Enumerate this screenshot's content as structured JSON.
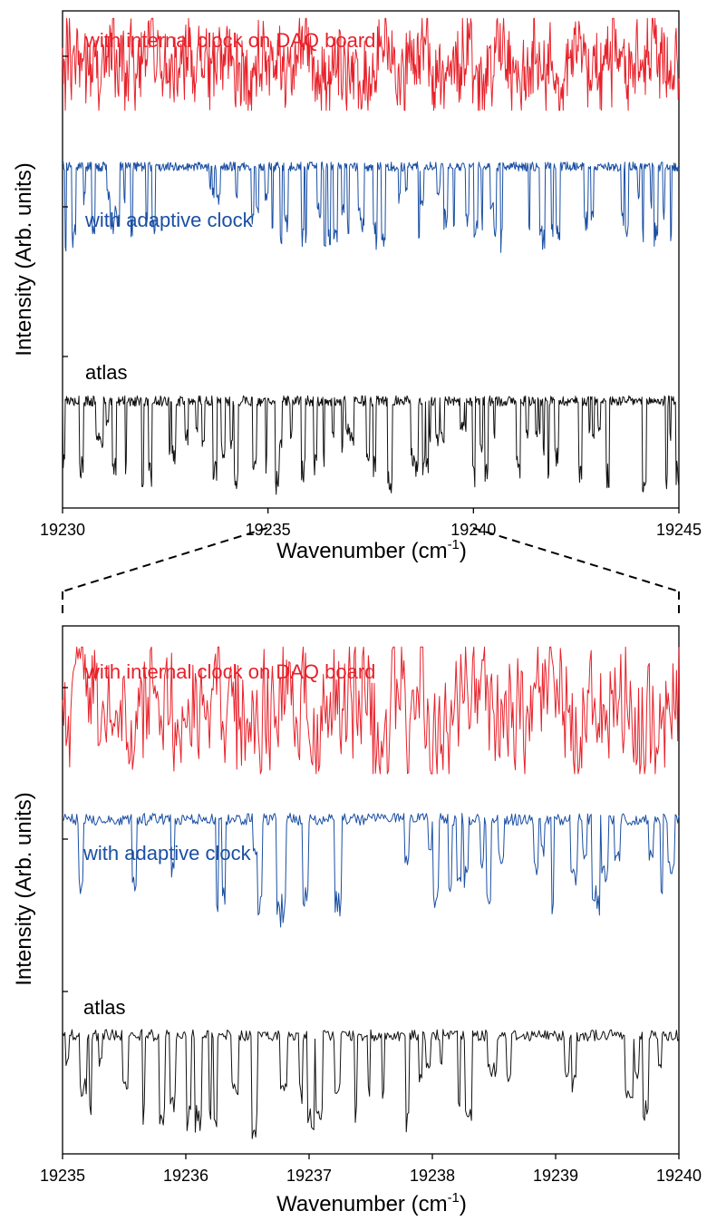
{
  "colors": {
    "internal": "#e8212a",
    "adaptive": "#1a4fa3",
    "atlas": "#111111",
    "axis": "#000000"
  },
  "chart_data": [
    {
      "type": "line",
      "xlabel": "Wavenumber (cm",
      "xlabel_sup": "-1",
      "xlabel_end": ")",
      "ylabel": "Intensity (Arb. units)",
      "xlim": [
        19230,
        19245
      ],
      "xticks": [
        "19230",
        "19235",
        "19240",
        "19245"
      ],
      "y_scale": "arbitrary, three vertically offset traces",
      "series": [
        {
          "name": "with internal clock on DAQ board",
          "color": "#e8212a",
          "range": [
            0.8,
            0.985
          ],
          "style": "noisy"
        },
        {
          "name": "with adaptive clock",
          "color": "#1a4fa3",
          "range": [
            0.51,
            0.7
          ],
          "style": "absorption"
        },
        {
          "name": "atlas",
          "color": "#111111",
          "range": [
            0.02,
            0.23
          ],
          "style": "absorption"
        }
      ]
    },
    {
      "type": "line",
      "xlabel": "Wavenumber (cm",
      "xlabel_sup": "-1",
      "xlabel_end": ")",
      "ylabel": "Intensity (Arb. units)",
      "xlim": [
        19235,
        19240
      ],
      "xticks": [
        "19235",
        "19236",
        "19237",
        "19238",
        "19239",
        "19240"
      ],
      "y_scale": "arbitrary, three vertically offset traces",
      "zoom_of_top_panel": [
        19235,
        19240
      ],
      "series": [
        {
          "name": "with internal clock on DAQ board",
          "color": "#e8212a",
          "range": [
            0.72,
            0.96
          ],
          "style": "noisy"
        },
        {
          "name": "with adaptive clock",
          "color": "#1a4fa3",
          "range": [
            0.42,
            0.65
          ],
          "style": "absorption"
        },
        {
          "name": "atlas",
          "color": "#111111",
          "range": [
            0.02,
            0.24
          ],
          "style": "absorption"
        }
      ]
    }
  ]
}
